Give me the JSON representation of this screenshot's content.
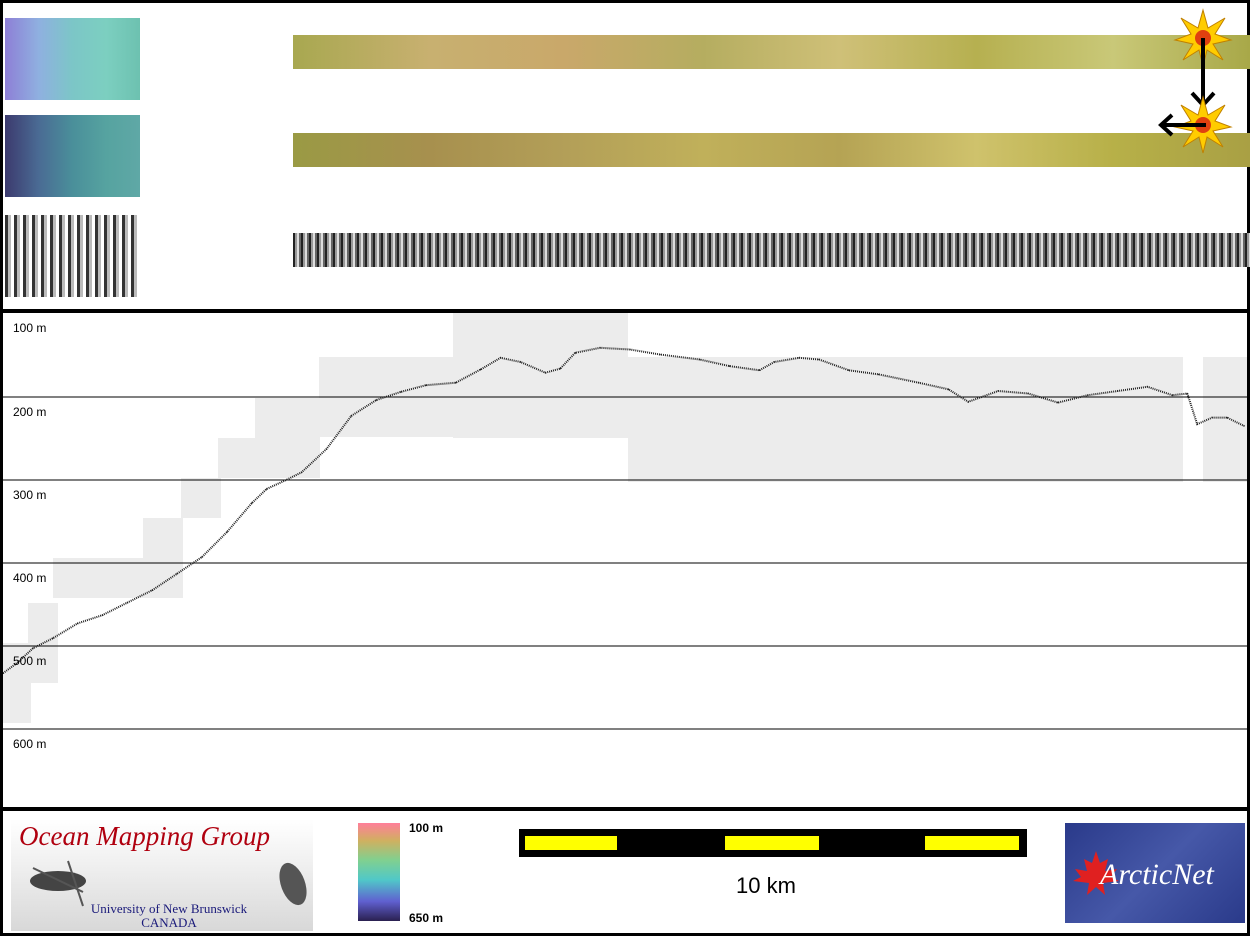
{
  "chart_data": {
    "type": "line",
    "title": "",
    "xlabel": "",
    "ylabel": "",
    "y_tick_labels": [
      "100 m",
      "200 m",
      "300 m",
      "400 m",
      "500 m",
      "600 m"
    ],
    "y_ticks": [
      100,
      200,
      300,
      400,
      500,
      600
    ],
    "ylim": [
      90,
      700
    ],
    "y_inverted": true,
    "xlim": [
      0,
      1250
    ],
    "grid": "horizontal",
    "series": [
      {
        "x": [
          0,
          15,
          30,
          50,
          75,
          100,
          125,
          150,
          175,
          200,
          225,
          250,
          265,
          285,
          300,
          325,
          350,
          375,
          400,
          425,
          455,
          480,
          500,
          520,
          545,
          560,
          575,
          600,
          630,
          660,
          700,
          730,
          760,
          775,
          800,
          820,
          850,
          880,
          920,
          950,
          970,
          1000,
          1030,
          1060,
          1090,
          1120,
          1150,
          1175,
          1190,
          1200,
          1215,
          1230,
          1247
        ],
        "y": [
          540,
          527,
          510,
          498,
          480,
          470,
          455,
          440,
          420,
          400,
          370,
          335,
          318,
          307,
          298,
          270,
          230,
          211,
          201,
          193,
          190,
          174,
          160,
          165,
          178,
          173,
          154,
          148,
          150,
          156,
          162,
          170,
          175,
          165,
          160,
          162,
          175,
          180,
          190,
          198,
          213,
          200,
          203,
          214,
          205,
          200,
          195,
          205,
          203,
          240,
          232,
          232,
          242
        ]
      }
    ]
  },
  "colorbar": {
    "min_label": "650 m",
    "max_label": "100 m"
  },
  "scalebar": {
    "label": "10 km",
    "colors": {
      "dark": "#000000",
      "light": "#ffff00"
    }
  },
  "logos": {
    "omg": {
      "title": "Ocean Mapping Group",
      "line1": "University of New Brunswick",
      "line2": "CANADA"
    },
    "arcticnet": {
      "name": "ArcticNet"
    }
  },
  "colors": {
    "profile": "#222222",
    "coverage": "#ececec",
    "gridline": "#000000"
  }
}
